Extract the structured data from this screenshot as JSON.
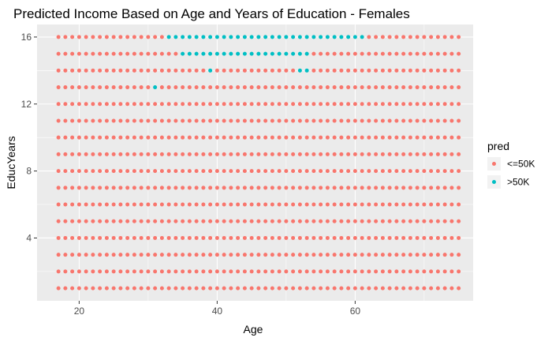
{
  "chart_data": {
    "type": "scatter",
    "title": "Predicted Income Based on Age and Years of Education - Females",
    "xlabel": "Age",
    "ylabel": "EducYears",
    "xlim": [
      13.9,
      77.1
    ],
    "ylim": [
      0.25,
      16.75
    ],
    "x_ticks": [
      20,
      40,
      60
    ],
    "y_ticks": [
      4,
      8,
      12,
      16
    ],
    "x_values": {
      "from": 17,
      "to": 75,
      "step": 1
    },
    "y_values": {
      "from": 1,
      "to": 16,
      "step": 1
    },
    "grid": true,
    "legend_position": "right",
    "legend": {
      "title": "pred",
      "entries": [
        {
          "label": "<=50K",
          "color": "#F8766D"
        },
        {
          "label": ">50K",
          "color": "#00BFC4"
        }
      ]
    },
    "series": [
      {
        "name": "<=50K",
        "color": "#F8766D",
        "points": "all remaining grid points (ages 17-75, years 1-16)"
      },
      {
        "name": ">50K",
        "color": "#00BFC4",
        "ranges": [
          {
            "y": 16,
            "x_from": 33,
            "x_to": 61
          },
          {
            "y": 15,
            "x_from": 35,
            "x_to": 53
          },
          {
            "y": 14,
            "x": [
              39,
              52,
              53
            ]
          },
          {
            "y": 13,
            "x": [
              31
            ]
          }
        ]
      }
    ]
  }
}
